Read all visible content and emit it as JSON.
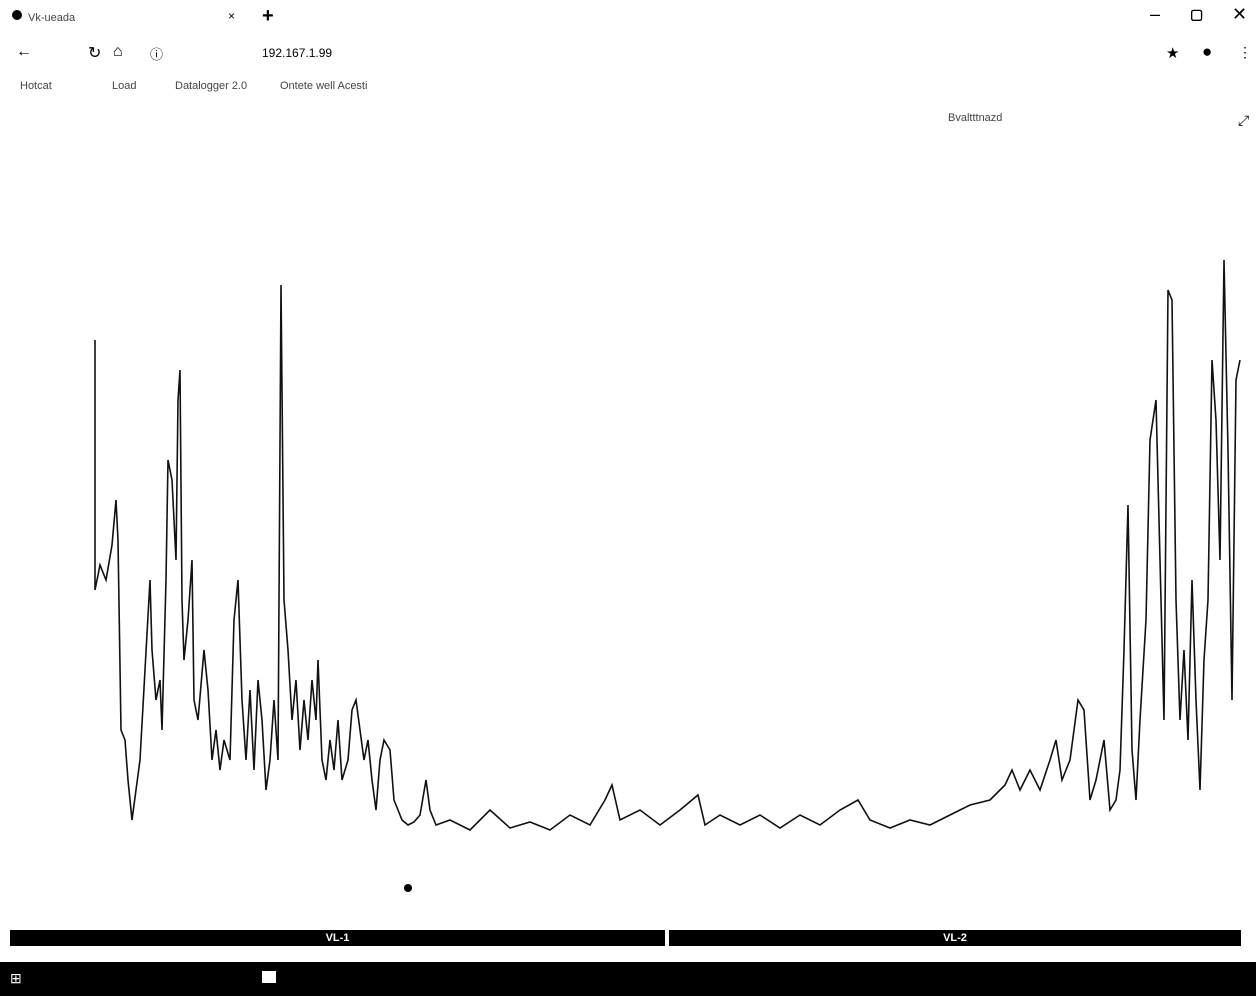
{
  "browser": {
    "tab_title": "Vk-ueada",
    "address": "192.167.1.99",
    "bookmarks": [
      "Hotcat",
      "Load",
      "Datalogger 2.0",
      "Ontete well Acesti"
    ]
  },
  "page": {
    "menu_item": "Bvaltttnazd"
  },
  "bottom_tabs": [
    "VL-1",
    "VL-2"
  ]
}
